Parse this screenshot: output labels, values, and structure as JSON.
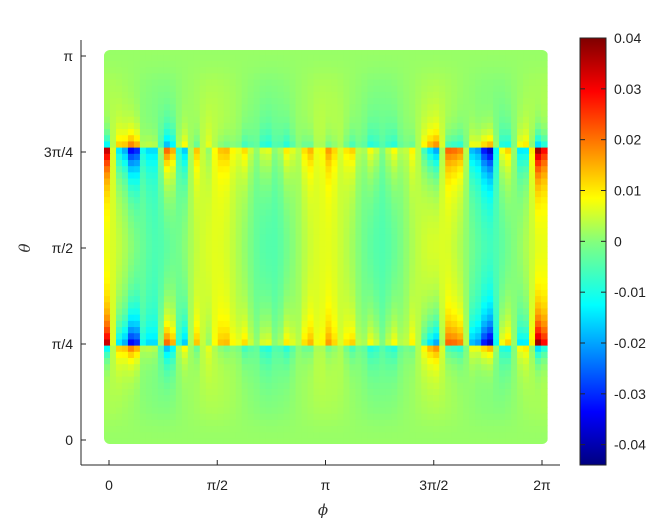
{
  "chart_data": {
    "type": "heatmap",
    "xlabel": "ϕ",
    "ylabel": "θ",
    "xlim": [
      0,
      6.2832
    ],
    "ylim": [
      0,
      3.1416
    ],
    "x_ticks": [
      {
        "value": 0,
        "label": "0"
      },
      {
        "value": 1.5708,
        "label": "π/2"
      },
      {
        "value": 3.1416,
        "label": "π"
      },
      {
        "value": 4.7124,
        "label": "3π/2"
      },
      {
        "value": 6.2832,
        "label": "2π"
      }
    ],
    "y_ticks": [
      {
        "value": 0,
        "label": "0"
      },
      {
        "value": 0.7854,
        "label": "π/4"
      },
      {
        "value": 1.5708,
        "label": "π/2"
      },
      {
        "value": 2.3562,
        "label": "3π/4"
      },
      {
        "value": 3.1416,
        "label": "π"
      }
    ],
    "colorbar": {
      "colormap": "jet",
      "range": [
        -0.044,
        0.04
      ],
      "ticks": [
        0.04,
        0.03,
        0.02,
        0.01,
        0,
        -0.01,
        -0.02,
        -0.03,
        -0.04
      ],
      "tick_labels": [
        "0.04",
        "0.03",
        "0.02",
        "0.01",
        "0",
        "-0.01",
        "-0.02",
        "-0.03",
        "-0.04"
      ]
    },
    "bands_theta": [
      0.7854,
      2.3562
    ],
    "band_features": [
      {
        "phi": 0.0,
        "value": 0.04
      },
      {
        "phi": 0.24,
        "value": -0.02
      },
      {
        "phi": 0.42,
        "value": -0.04
      },
      {
        "phi": 0.68,
        "value": -0.015
      },
      {
        "phi": 0.92,
        "value": 0.03
      },
      {
        "phi": 1.13,
        "value": -0.02
      },
      {
        "phi": 1.31,
        "value": 0.015
      },
      {
        "phi": 1.47,
        "value": -0.01
      },
      {
        "phi": 1.6,
        "value": 0.01
      },
      {
        "phi": 1.75,
        "value": 0.012
      },
      {
        "phi": 2.0,
        "value": 0.013
      },
      {
        "phi": 2.3,
        "value": 0.013
      },
      {
        "phi": 2.6,
        "value": 0.014
      },
      {
        "phi": 2.9,
        "value": 0.014
      },
      {
        "phi": 3.2,
        "value": 0.014
      },
      {
        "phi": 3.5,
        "value": 0.014
      },
      {
        "phi": 3.8,
        "value": 0.013
      },
      {
        "phi": 4.1,
        "value": 0.013
      },
      {
        "phi": 4.38,
        "value": 0.01
      },
      {
        "phi": 4.55,
        "value": -0.012
      },
      {
        "phi": 4.71,
        "value": -0.03
      },
      {
        "phi": 4.88,
        "value": 0.022
      },
      {
        "phi": 5.05,
        "value": 0.02
      },
      {
        "phi": 5.25,
        "value": -0.02
      },
      {
        "phi": 5.45,
        "value": -0.04
      },
      {
        "phi": 5.7,
        "value": 0.018
      },
      {
        "phi": 5.95,
        "value": -0.02
      },
      {
        "phi": 6.18,
        "value": 0.04
      }
    ]
  }
}
